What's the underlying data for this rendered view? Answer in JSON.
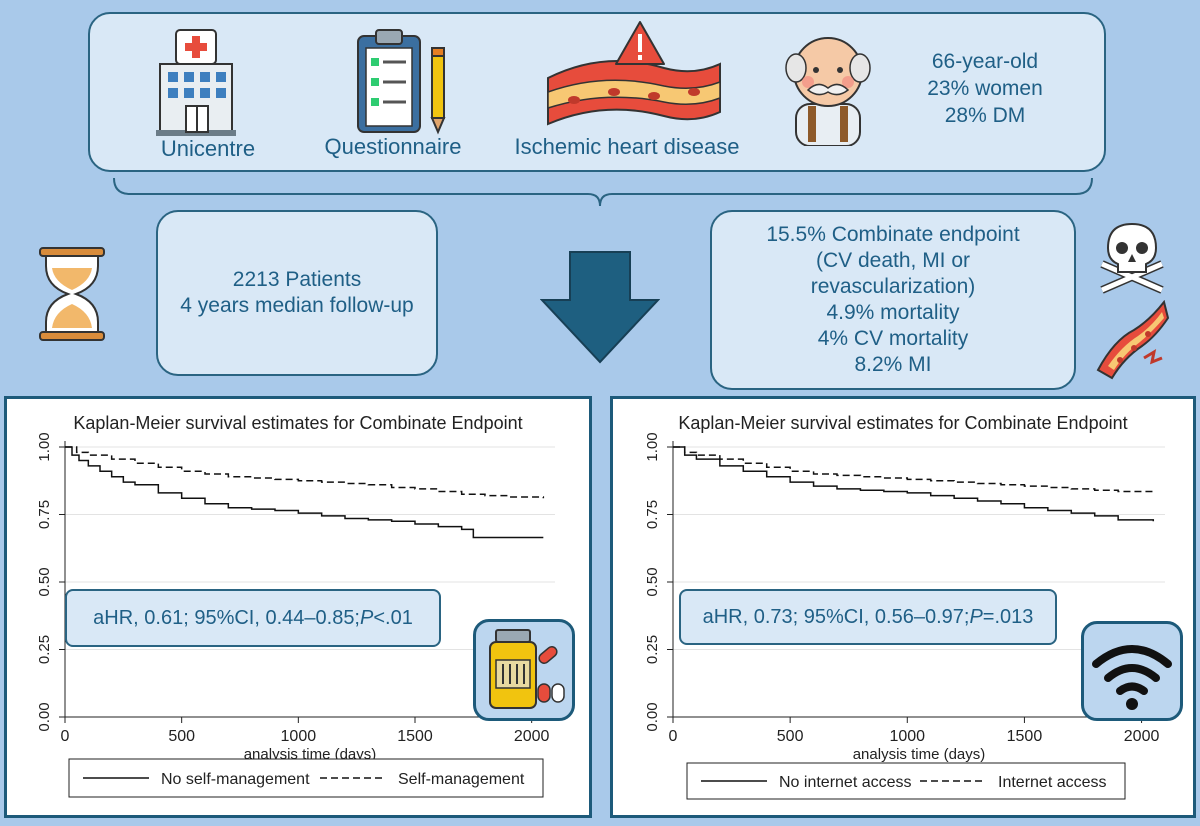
{
  "top": {
    "items": [
      "Unicentre",
      "Questionnaire",
      "Ischemic heart disease"
    ],
    "demographics": [
      "66-year-old",
      "23% women",
      "28% DM"
    ]
  },
  "patients_box": [
    "2213 Patients",
    "4 years median follow-up"
  ],
  "endpoint_box": [
    "15.5% Combinate endpoint",
    "(CV death, MI or",
    "revascularization)",
    "4.9% mortality",
    "4% CV mortality",
    "8.2% MI"
  ],
  "colors": {
    "background": "#a9c9ea",
    "box_fill": "#d9e8f6",
    "border": "#2a6482",
    "arrow": "#1e5f80",
    "text": "#1f5f86"
  },
  "chart_data": [
    {
      "type": "line",
      "title": "Kaplan-Meier survival estimates for Combinate Endpoint",
      "xlabel": "analysis time (days)",
      "ylabel": "",
      "xlim": [
        0,
        2100
      ],
      "ylim": [
        0,
        1
      ],
      "xticks": [
        "0",
        "500",
        "1000",
        "1500",
        "2000"
      ],
      "yticks": [
        "0.00",
        "0.25",
        "0.50",
        "0.75",
        "1.00"
      ],
      "hr_text": "aHR, 0.61; 95%CI, 0.44–0.85; ",
      "hr_p_label": "P",
      "hr_p_value": "<.01",
      "icon": "medication-icon",
      "series": [
        {
          "name": "No self-management",
          "style": "solid",
          "x": [
            0,
            30,
            60,
            100,
            150,
            200,
            250,
            300,
            400,
            500,
            600,
            700,
            800,
            900,
            1000,
            1100,
            1200,
            1300,
            1400,
            1500,
            1600,
            1700,
            1750,
            1800,
            1900,
            2050
          ],
          "y": [
            1.0,
            0.97,
            0.95,
            0.93,
            0.91,
            0.89,
            0.87,
            0.86,
            0.83,
            0.81,
            0.79,
            0.775,
            0.77,
            0.765,
            0.755,
            0.745,
            0.735,
            0.73,
            0.725,
            0.715,
            0.705,
            0.695,
            0.665,
            0.665,
            0.665,
            0.665
          ]
        },
        {
          "name": "Self-management",
          "style": "dashed",
          "x": [
            0,
            50,
            100,
            200,
            300,
            400,
            500,
            600,
            700,
            800,
            900,
            1000,
            1100,
            1200,
            1300,
            1400,
            1500,
            1600,
            1700,
            1800,
            1900,
            2050
          ],
          "y": [
            1.0,
            0.98,
            0.97,
            0.955,
            0.94,
            0.925,
            0.91,
            0.9,
            0.89,
            0.885,
            0.88,
            0.875,
            0.87,
            0.865,
            0.86,
            0.85,
            0.845,
            0.835,
            0.825,
            0.82,
            0.815,
            0.81
          ]
        }
      ]
    },
    {
      "type": "line",
      "title": "Kaplan-Meier survival estimates for Combinate Endpoint",
      "xlabel": "analysis time (days)",
      "ylabel": "",
      "xlim": [
        0,
        2100
      ],
      "ylim": [
        0,
        1
      ],
      "xticks": [
        "0",
        "500",
        "1000",
        "1500",
        "2000"
      ],
      "yticks": [
        "0.00",
        "0.25",
        "0.50",
        "0.75",
        "1.00"
      ],
      "hr_text": "aHR, 0.73; 95%CI, 0.56–0.97; ",
      "hr_p_label": "P",
      "hr_p_value": "=.013",
      "icon": "wifi-icon",
      "series": [
        {
          "name": "No internet access",
          "style": "solid",
          "x": [
            0,
            50,
            100,
            200,
            300,
            400,
            500,
            600,
            700,
            800,
            900,
            1000,
            1100,
            1200,
            1300,
            1400,
            1500,
            1600,
            1700,
            1800,
            1900,
            2050
          ],
          "y": [
            1.0,
            0.97,
            0.955,
            0.93,
            0.91,
            0.89,
            0.87,
            0.855,
            0.845,
            0.84,
            0.835,
            0.83,
            0.82,
            0.81,
            0.8,
            0.79,
            0.775,
            0.765,
            0.755,
            0.745,
            0.73,
            0.725
          ]
        },
        {
          "name": "Internet access",
          "style": "dashed",
          "x": [
            0,
            50,
            100,
            200,
            300,
            400,
            500,
            600,
            700,
            800,
            900,
            1000,
            1100,
            1200,
            1300,
            1400,
            1500,
            1600,
            1700,
            1800,
            1900,
            2050
          ],
          "y": [
            1.0,
            0.98,
            0.97,
            0.955,
            0.94,
            0.925,
            0.91,
            0.9,
            0.895,
            0.89,
            0.885,
            0.88,
            0.875,
            0.87,
            0.865,
            0.86,
            0.855,
            0.85,
            0.845,
            0.84,
            0.835,
            0.835
          ]
        }
      ]
    }
  ]
}
